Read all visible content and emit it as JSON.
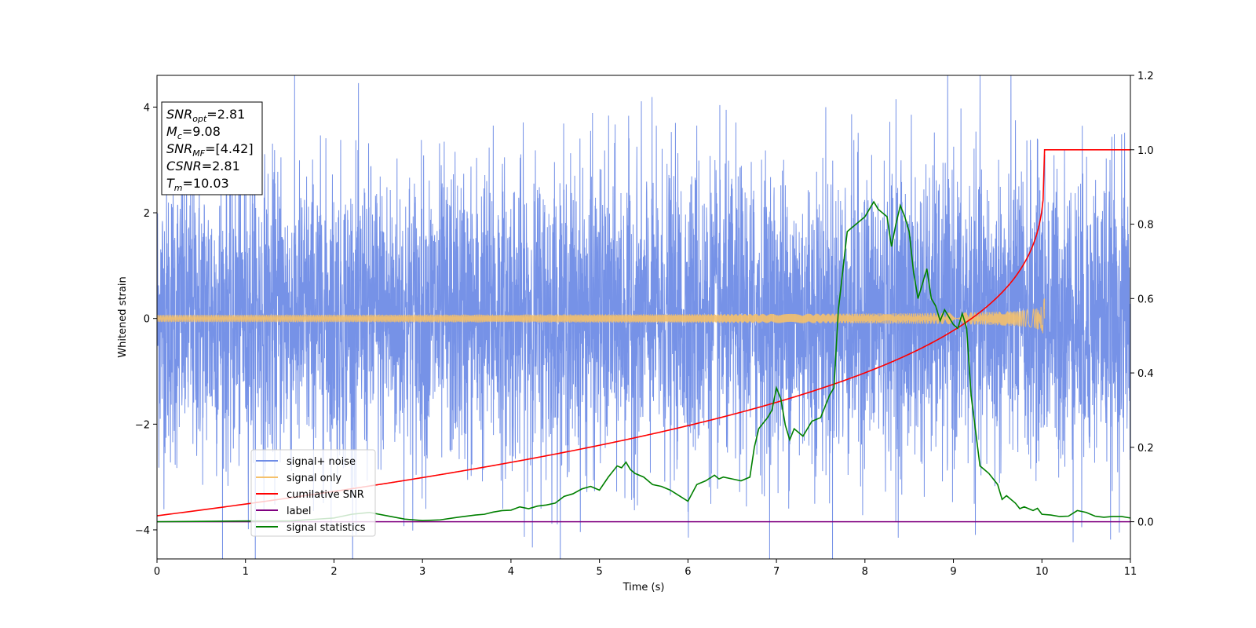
{
  "chart_data": {
    "type": "line",
    "xlabel": "Time (s)",
    "ylabel_left": "Whitened strain",
    "ylabel_right": "",
    "xlim": [
      0,
      11
    ],
    "ylim_left": [
      -4.55,
      4.6
    ],
    "ylim_right": [
      -0.1,
      1.2
    ],
    "x_ticks": [
      0,
      1,
      2,
      3,
      4,
      5,
      6,
      7,
      8,
      9,
      10,
      11
    ],
    "y_ticks_left": [
      -4,
      -2,
      0,
      2,
      4
    ],
    "y_ticks_left_labels": [
      "−4",
      "−2",
      "0",
      "2",
      "4"
    ],
    "y_ticks_right": [
      0.0,
      0.2,
      0.4,
      0.6,
      0.8,
      1.0,
      1.2
    ],
    "y_ticks_right_labels": [
      "0.0",
      "0.2",
      "0.4",
      "0.6",
      "0.8",
      "1.0",
      "1.2"
    ],
    "grid": false,
    "legend_position": "lower-left",
    "annotation": {
      "lines": [
        {
          "base": "SNR",
          "sub": "opt",
          "text": "=2.81"
        },
        {
          "base": "M",
          "sub": "c",
          "text": "=9.08"
        },
        {
          "base": "SNR",
          "sub": "MF",
          "text": "=[4.42]"
        },
        {
          "base": "CSNR",
          "sub": "",
          "text": "=2.81"
        },
        {
          "base": "T",
          "sub": "m",
          "text": "=10.03"
        }
      ]
    },
    "series": [
      {
        "name": "signal+ noise",
        "color": "#6f8ce6",
        "axis": "left",
        "kind": "noise",
        "x_range": [
          0,
          11
        ],
        "typical_range": [
          -2.2,
          2.3
        ],
        "peaks": [
          [
            2.25,
            -4.1
          ],
          [
            3.8,
            3.65
          ],
          [
            6.1,
            3.65
          ],
          [
            8.35,
            4.15
          ],
          [
            9.7,
            3.75
          ],
          [
            10.45,
            -3.95
          ],
          [
            1.4,
            3.05
          ],
          [
            4.9,
            3.55
          ],
          [
            7.6,
            -3.5
          ]
        ]
      },
      {
        "name": "signal only",
        "color": "#f5c16c",
        "axis": "left",
        "kind": "chirp",
        "x_range": [
          0,
          10.03
        ],
        "amplitude_end": 0.45
      },
      {
        "name": "cumilative SNR",
        "color": "#ff0000",
        "axis": "right",
        "x": [
          0,
          1,
          2,
          3,
          4,
          5,
          6,
          7,
          7.5,
          8,
          8.5,
          9,
          9.5,
          9.8,
          10,
          10.03,
          11
        ],
        "values": [
          0.016,
          0.063,
          0.095,
          0.127,
          0.158,
          0.19,
          0.221,
          0.259,
          0.283,
          0.318,
          0.365,
          0.435,
          0.56,
          0.71,
          0.88,
          1.0,
          1.0
        ]
      },
      {
        "name": "label",
        "color": "#800080",
        "axis": "right",
        "x": [
          0,
          11
        ],
        "values": [
          0.0,
          0.0
        ]
      },
      {
        "name": "signal statistics",
        "color": "#008000",
        "axis": "right",
        "x": [
          0,
          0.5,
          1,
          1.5,
          2,
          2.2,
          2.4,
          2.6,
          2.8,
          3.0,
          3.2,
          3.4,
          3.6,
          3.7,
          3.8,
          3.9,
          4.0,
          4.1,
          4.2,
          4.3,
          4.4,
          4.5,
          4.6,
          4.7,
          4.8,
          4.9,
          5.0,
          5.1,
          5.2,
          5.25,
          5.3,
          5.35,
          5.4,
          5.5,
          5.6,
          5.7,
          5.8,
          5.9,
          6.0,
          6.1,
          6.2,
          6.3,
          6.35,
          6.4,
          6.5,
          6.6,
          6.7,
          6.75,
          6.8,
          6.9,
          6.95,
          7.0,
          7.05,
          7.1,
          7.15,
          7.2,
          7.3,
          7.4,
          7.5,
          7.6,
          7.65,
          7.7,
          7.8,
          7.9,
          8.0,
          8.05,
          8.1,
          8.15,
          8.25,
          8.3,
          8.35,
          8.4,
          8.45,
          8.5,
          8.55,
          8.6,
          8.65,
          8.7,
          8.75,
          8.8,
          8.85,
          8.9,
          9.0,
          9.05,
          9.1,
          9.15,
          9.2,
          9.3,
          9.35,
          9.4,
          9.5,
          9.55,
          9.6,
          9.7,
          9.75,
          9.8,
          9.9,
          9.95,
          10.0,
          10.1,
          10.2,
          10.3,
          10.4,
          10.5,
          10.6,
          10.7,
          10.8,
          10.9,
          11.0
        ],
        "values": [
          0.0,
          0.001,
          0.002,
          0.002,
          0.01,
          0.02,
          0.025,
          0.016,
          0.007,
          0.003,
          0.005,
          0.012,
          0.018,
          0.02,
          0.026,
          0.03,
          0.031,
          0.04,
          0.035,
          0.042,
          0.045,
          0.05,
          0.068,
          0.075,
          0.088,
          0.095,
          0.085,
          0.12,
          0.15,
          0.145,
          0.16,
          0.14,
          0.13,
          0.12,
          0.1,
          0.095,
          0.085,
          0.07,
          0.055,
          0.1,
          0.11,
          0.125,
          0.115,
          0.12,
          0.115,
          0.11,
          0.12,
          0.2,
          0.25,
          0.28,
          0.3,
          0.36,
          0.33,
          0.26,
          0.22,
          0.25,
          0.23,
          0.27,
          0.28,
          0.34,
          0.36,
          0.57,
          0.78,
          0.8,
          0.82,
          0.84,
          0.86,
          0.84,
          0.82,
          0.74,
          0.8,
          0.85,
          0.82,
          0.78,
          0.67,
          0.6,
          0.64,
          0.68,
          0.6,
          0.58,
          0.54,
          0.57,
          0.53,
          0.52,
          0.56,
          0.52,
          0.34,
          0.15,
          0.14,
          0.13,
          0.1,
          0.06,
          0.07,
          0.05,
          0.035,
          0.04,
          0.03,
          0.036,
          0.02,
          0.018,
          0.014,
          0.015,
          0.03,
          0.025,
          0.015,
          0.012,
          0.014,
          0.014,
          0.01
        ]
      }
    ]
  }
}
